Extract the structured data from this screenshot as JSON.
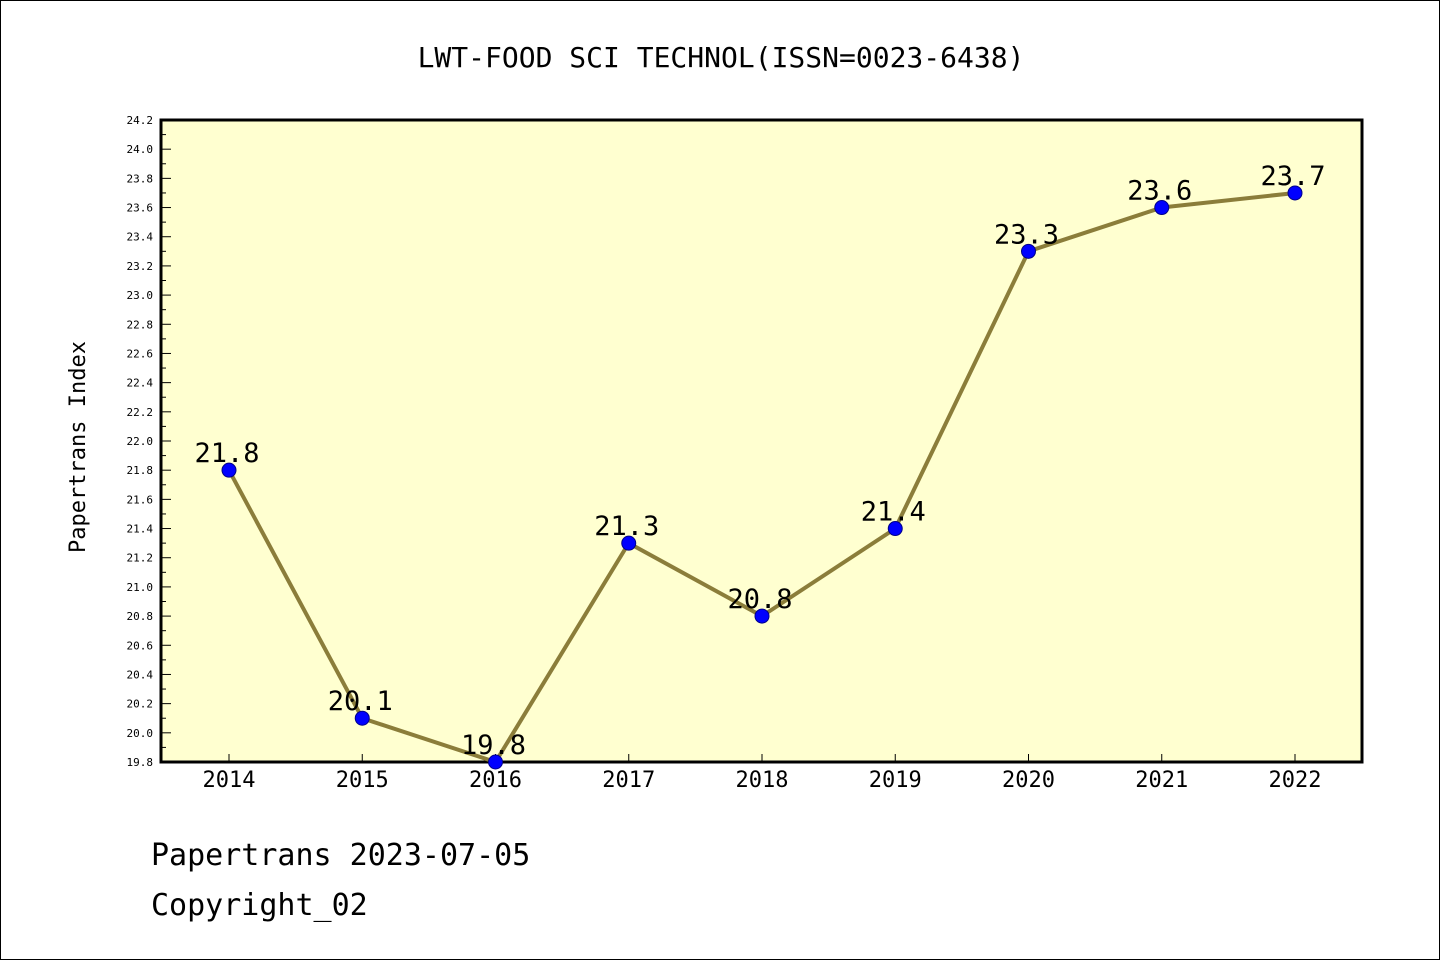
{
  "chart_data": {
    "type": "line",
    "title": "LWT-FOOD SCI TECHNOL(ISSN=0023-6438)",
    "xlabel": "",
    "ylabel": "Papertrans Index",
    "categories": [
      "2014",
      "2015",
      "2016",
      "2017",
      "2018",
      "2019",
      "2020",
      "2021",
      "2022"
    ],
    "series": [
      {
        "values": [
          21.8,
          20.1,
          19.8,
          21.3,
          20.8,
          21.4,
          23.3,
          23.6,
          23.7
        ],
        "labels": [
          "21.8",
          "20.1",
          "19.8",
          "21.3",
          "20.8",
          "21.4",
          "23.3",
          "23.6",
          "23.7"
        ]
      }
    ],
    "ylim": [
      19.8,
      24.2
    ],
    "yticks": [
      "19.8",
      "20.0",
      "20.2",
      "20.4",
      "20.6",
      "20.8",
      "21.0",
      "21.2",
      "21.4",
      "21.6",
      "21.8",
      "22.0",
      "22.2",
      "22.4",
      "22.6",
      "22.8",
      "23.0",
      "23.2",
      "23.4",
      "23.6",
      "23.8",
      "24.0",
      "24.2"
    ],
    "grid": false,
    "legend": "none",
    "colors": {
      "plot_background": "#ffffd0",
      "line": "#8b7d3a",
      "marker": "#0000ff"
    }
  },
  "footer": {
    "line1": "Papertrans 2023-07-05",
    "line2": "Copyright_02"
  }
}
